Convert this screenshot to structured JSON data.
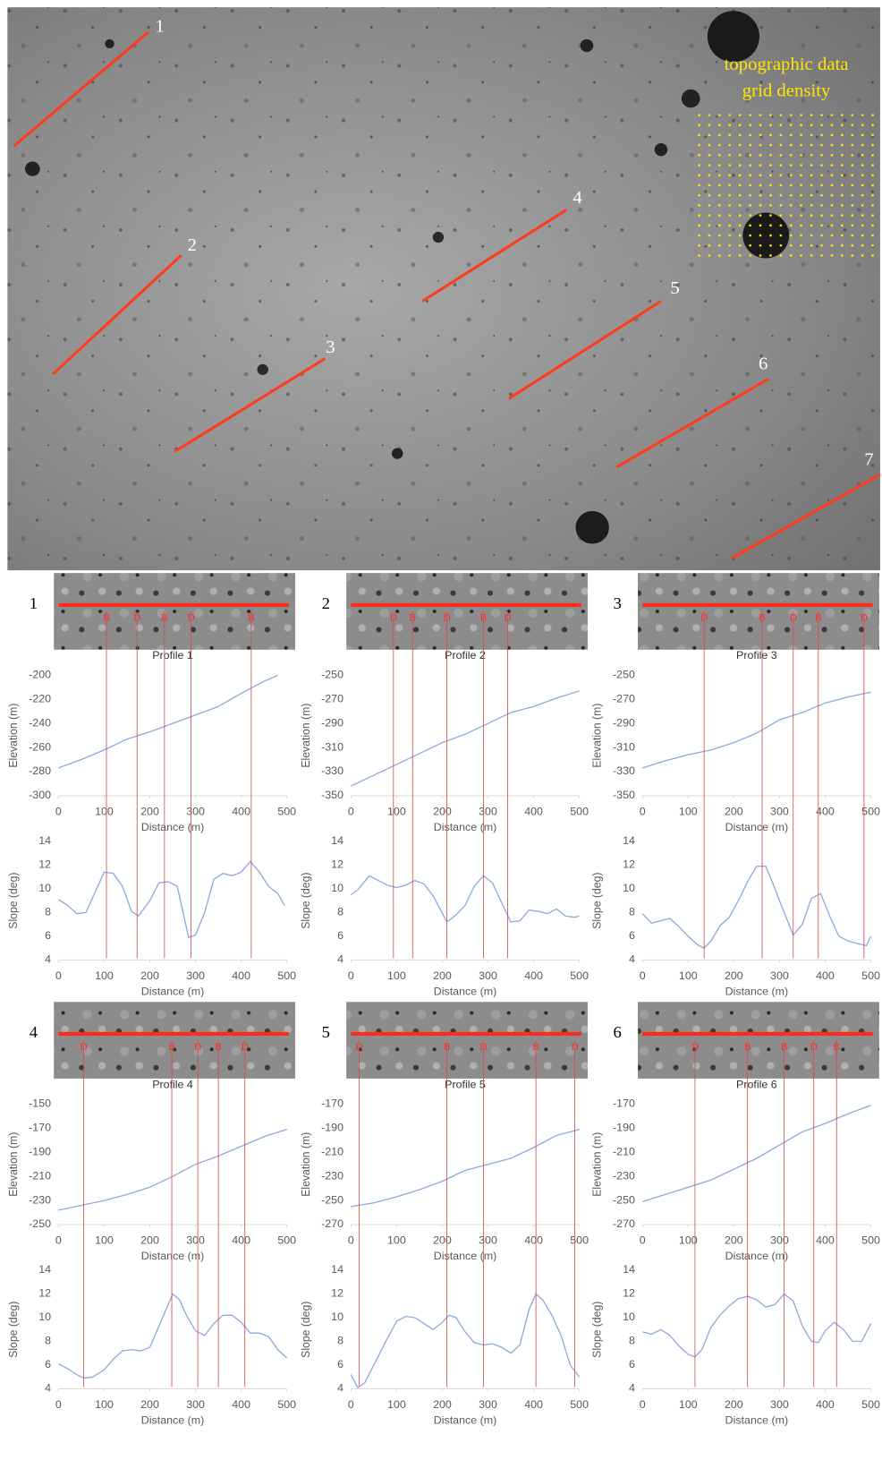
{
  "map": {
    "annotation": [
      "topographic data",
      "grid density"
    ],
    "profile_labels": [
      "1",
      "2",
      "3",
      "4",
      "5",
      "6",
      "7"
    ]
  },
  "profiles": [
    {
      "number": "1",
      "title": "Profile 1",
      "markers": [
        {
          "label": "B",
          "x": 105
        },
        {
          "label": "D",
          "x": 172
        },
        {
          "label": "B",
          "x": 232
        },
        {
          "label": "D",
          "x": 290
        },
        {
          "label": "B",
          "x": 422
        }
      ]
    },
    {
      "number": "2",
      "title": "Profile 2",
      "markers": [
        {
          "label": "D",
          "x": 93
        },
        {
          "label": "B",
          "x": 135
        },
        {
          "label": "D",
          "x": 210
        },
        {
          "label": "B",
          "x": 290
        },
        {
          "label": "D",
          "x": 343
        }
      ]
    },
    {
      "number": "3",
      "title": "Profile 3",
      "markers": [
        {
          "label": "D",
          "x": 135
        },
        {
          "label": "B",
          "x": 262
        },
        {
          "label": "D",
          "x": 330
        },
        {
          "label": "B",
          "x": 385
        },
        {
          "label": "D",
          "x": 485
        }
      ]
    },
    {
      "number": "4",
      "title": "Profile 4",
      "markers": [
        {
          "label": "D",
          "x": 55
        },
        {
          "label": "B",
          "x": 248
        },
        {
          "label": "D",
          "x": 305
        },
        {
          "label": "B",
          "x": 350
        },
        {
          "label": "D",
          "x": 408
        }
      ]
    },
    {
      "number": "5",
      "title": "Profile 5",
      "markers": [
        {
          "label": "D",
          "x": 18
        },
        {
          "label": "B",
          "x": 210
        },
        {
          "label": "D",
          "x": 290
        },
        {
          "label": "B",
          "x": 405
        },
        {
          "label": "D",
          "x": 490
        }
      ]
    },
    {
      "number": "6",
      "title": "Profile 6",
      "markers": [
        {
          "label": "D",
          "x": 115
        },
        {
          "label": "B",
          "x": 230
        },
        {
          "label": "B",
          "x": 310
        },
        {
          "label": "D",
          "x": 375
        },
        {
          "label": "B",
          "x": 425
        }
      ]
    }
  ],
  "chart_data": [
    {
      "type": "line",
      "xlabel": "Distance (m)",
      "ylabel": "Elevation (m)",
      "color": "#8faadc",
      "x": [
        0,
        50,
        100,
        150,
        200,
        250,
        300,
        350,
        400,
        450,
        480
      ],
      "values": [
        -277,
        -270,
        -262,
        -253,
        -247,
        -240,
        -233,
        -226,
        -215,
        -205,
        -200
      ],
      "xlim": [
        0,
        500
      ],
      "xticks": [
        0,
        100,
        200,
        300,
        400,
        500
      ],
      "ylim": [
        -300,
        -200
      ],
      "yticks": [
        -300,
        -280,
        -260,
        -240,
        -220,
        -200
      ]
    },
    {
      "type": "line",
      "xlabel": "Distance (m)",
      "ylabel": "Slope (deg)",
      "color": "#8faadc",
      "x": [
        0,
        20,
        40,
        60,
        100,
        120,
        140,
        160,
        175,
        200,
        220,
        240,
        260,
        285,
        300,
        320,
        340,
        360,
        380,
        400,
        420,
        440,
        460,
        480,
        495
      ],
      "values": [
        9.1,
        8.6,
        7.9,
        8.0,
        11.4,
        11.3,
        10.2,
        8.1,
        7.7,
        9.0,
        10.5,
        10.6,
        10.2,
        5.9,
        6.1,
        8.0,
        10.8,
        11.3,
        11.1,
        11.4,
        12.3,
        11.4,
        10.2,
        9.6,
        8.6
      ],
      "xlim": [
        0,
        500
      ],
      "xticks": [
        0,
        100,
        200,
        300,
        400,
        500
      ],
      "ylim": [
        4,
        14
      ],
      "yticks": [
        4,
        6,
        8,
        10,
        12,
        14
      ]
    },
    {
      "type": "line",
      "xlabel": "Distance (m)",
      "ylabel": "Elevation (m)",
      "color": "#8faadc",
      "x": [
        0,
        50,
        100,
        150,
        200,
        250,
        300,
        350,
        400,
        450,
        500
      ],
      "values": [
        -342,
        -333,
        -324,
        -315,
        -306,
        -299,
        -290,
        -281,
        -276,
        -269,
        -263
      ],
      "xlim": [
        0,
        500
      ],
      "xticks": [
        0,
        100,
        200,
        300,
        400,
        500
      ],
      "ylim": [
        -350,
        -250
      ],
      "yticks": [
        -350,
        -330,
        -310,
        -290,
        -270,
        -250
      ]
    },
    {
      "type": "line",
      "xlabel": "Distance (m)",
      "ylabel": "Slope (deg)",
      "color": "#8faadc",
      "x": [
        0,
        15,
        40,
        60,
        80,
        100,
        120,
        140,
        160,
        180,
        210,
        230,
        250,
        270,
        290,
        310,
        330,
        350,
        370,
        390,
        410,
        430,
        450,
        470,
        490,
        500
      ],
      "values": [
        9.5,
        9.9,
        11.1,
        10.7,
        10.3,
        10.1,
        10.3,
        10.7,
        10.4,
        9.4,
        7.2,
        7.8,
        8.6,
        10.2,
        11.1,
        10.5,
        8.8,
        7.2,
        7.3,
        8.2,
        8.1,
        7.9,
        8.3,
        7.7,
        7.6,
        7.7
      ],
      "xlim": [
        0,
        500
      ],
      "xticks": [
        0,
        100,
        200,
        300,
        400,
        500
      ],
      "ylim": [
        4,
        14
      ],
      "yticks": [
        4,
        6,
        8,
        10,
        12,
        14
      ]
    },
    {
      "type": "line",
      "xlabel": "Distance (m)",
      "ylabel": "Elevation (m)",
      "color": "#8faadc",
      "x": [
        0,
        50,
        100,
        150,
        200,
        250,
        300,
        350,
        400,
        450,
        500
      ],
      "values": [
        -327,
        -321,
        -316,
        -312,
        -306,
        -298,
        -287,
        -281,
        -273,
        -268,
        -264
      ],
      "xlim": [
        0,
        500
      ],
      "xticks": [
        0,
        100,
        200,
        300,
        400,
        500
      ],
      "ylim": [
        -350,
        -250
      ],
      "yticks": [
        -350,
        -330,
        -310,
        -290,
        -270,
        -250
      ]
    },
    {
      "type": "line",
      "xlabel": "Distance (m)",
      "ylabel": "Slope (deg)",
      "color": "#8faadc",
      "x": [
        0,
        20,
        40,
        60,
        80,
        100,
        120,
        135,
        150,
        170,
        190,
        210,
        230,
        250,
        270,
        285,
        300,
        330,
        350,
        370,
        390,
        410,
        430,
        450,
        470,
        490,
        500
      ],
      "values": [
        7.9,
        7.1,
        7.3,
        7.5,
        6.8,
        6.0,
        5.3,
        5.0,
        5.6,
        6.9,
        7.6,
        9.0,
        10.6,
        11.9,
        11.9,
        10.5,
        9.0,
        6.1,
        7.0,
        9.2,
        9.6,
        7.7,
        6.0,
        5.6,
        5.4,
        5.2,
        6.0
      ],
      "xlim": [
        0,
        500
      ],
      "xticks": [
        0,
        100,
        200,
        300,
        400,
        500
      ],
      "ylim": [
        4,
        14
      ],
      "yticks": [
        4,
        6,
        8,
        10,
        12,
        14
      ]
    },
    {
      "type": "line",
      "xlabel": "Distance (m)",
      "ylabel": "Elevation (m)",
      "color": "#8faadc",
      "x": [
        0,
        50,
        100,
        150,
        200,
        250,
        300,
        350,
        400,
        450,
        500
      ],
      "values": [
        -238,
        -234,
        -230,
        -225,
        -219,
        -210,
        -200,
        -193,
        -185,
        -177,
        -171
      ],
      "xlim": [
        0,
        500
      ],
      "xticks": [
        0,
        100,
        200,
        300,
        400,
        500
      ],
      "ylim": [
        -250,
        -150
      ],
      "yticks": [
        -250,
        -230,
        -210,
        -190,
        -170,
        -150
      ]
    },
    {
      "type": "line",
      "xlabel": "Distance (m)",
      "ylabel": "Slope (deg)",
      "color": "#8faadc",
      "x": [
        0,
        20,
        40,
        55,
        75,
        100,
        120,
        140,
        160,
        180,
        200,
        230,
        250,
        265,
        280,
        300,
        320,
        340,
        360,
        380,
        400,
        420,
        440,
        460,
        480,
        500
      ],
      "values": [
        6.1,
        5.7,
        5.2,
        4.9,
        5.0,
        5.6,
        6.5,
        7.2,
        7.3,
        7.2,
        7.5,
        10.2,
        12.0,
        11.5,
        10.2,
        8.9,
        8.5,
        9.5,
        10.2,
        10.2,
        9.6,
        8.7,
        8.7,
        8.4,
        7.3,
        6.6
      ],
      "xlim": [
        0,
        500
      ],
      "xticks": [
        0,
        100,
        200,
        300,
        400,
        500
      ],
      "ylim": [
        4,
        14
      ],
      "yticks": [
        4,
        6,
        8,
        10,
        12,
        14
      ]
    },
    {
      "type": "line",
      "xlabel": "Distance (m)",
      "ylabel": "Elevation (m)",
      "color": "#8faadc",
      "x": [
        0,
        50,
        100,
        150,
        200,
        250,
        300,
        350,
        400,
        450,
        500
      ],
      "values": [
        -255,
        -252,
        -247,
        -241,
        -234,
        -225,
        -220,
        -215,
        -206,
        -196,
        -191
      ],
      "xlim": [
        0,
        500
      ],
      "xticks": [
        0,
        100,
        200,
        300,
        400,
        500
      ],
      "ylim": [
        -270,
        -170
      ],
      "yticks": [
        -270,
        -250,
        -230,
        -210,
        -190,
        -170
      ]
    },
    {
      "type": "line",
      "xlabel": "Distance (m)",
      "ylabel": "Slope (deg)",
      "color": "#8faadc",
      "x": [
        0,
        15,
        30,
        50,
        75,
        100,
        120,
        140,
        160,
        180,
        200,
        215,
        230,
        250,
        270,
        290,
        310,
        330,
        350,
        370,
        390,
        405,
        420,
        440,
        460,
        480,
        500
      ],
      "values": [
        5.2,
        4.1,
        4.5,
        6.0,
        7.9,
        9.7,
        10.1,
        10.0,
        9.5,
        9.0,
        9.6,
        10.2,
        10.0,
        8.8,
        7.9,
        7.7,
        7.8,
        7.5,
        7.0,
        7.7,
        10.7,
        12.0,
        11.5,
        10.2,
        8.5,
        6.0,
        5.0
      ],
      "xlim": [
        0,
        500
      ],
      "xticks": [
        0,
        100,
        200,
        300,
        400,
        500
      ],
      "ylim": [
        4,
        14
      ],
      "yticks": [
        4,
        6,
        8,
        10,
        12,
        14
      ]
    },
    {
      "type": "line",
      "xlabel": "Distance (m)",
      "ylabel": "Elevation (m)",
      "color": "#8faadc",
      "x": [
        0,
        50,
        100,
        150,
        200,
        250,
        300,
        350,
        400,
        450,
        500
      ],
      "values": [
        -251,
        -245,
        -239,
        -233,
        -224,
        -215,
        -204,
        -193,
        -186,
        -178,
        -171
      ],
      "xlim": [
        0,
        500
      ],
      "xticks": [
        0,
        100,
        200,
        300,
        400,
        500
      ],
      "ylim": [
        -270,
        -170
      ],
      "yticks": [
        -270,
        -250,
        -230,
        -210,
        -190,
        -170
      ]
    },
    {
      "type": "line",
      "xlabel": "Distance (m)",
      "ylabel": "Slope (deg)",
      "color": "#8faadc",
      "x": [
        0,
        20,
        40,
        60,
        80,
        100,
        115,
        130,
        150,
        170,
        190,
        210,
        230,
        250,
        270,
        290,
        310,
        330,
        350,
        370,
        385,
        400,
        420,
        440,
        460,
        480,
        500
      ],
      "values": [
        8.8,
        8.6,
        9.0,
        8.5,
        7.6,
        6.9,
        6.7,
        7.3,
        9.2,
        10.2,
        11.0,
        11.6,
        11.8,
        11.5,
        10.9,
        11.1,
        12.0,
        11.4,
        9.3,
        8.0,
        7.9,
        8.9,
        9.6,
        9.0,
        8.0,
        8.0,
        9.5
      ],
      "xlim": [
        0,
        500
      ],
      "xticks": [
        0,
        100,
        200,
        300,
        400,
        500
      ],
      "ylim": [
        4,
        14
      ],
      "yticks": [
        4,
        6,
        8,
        10,
        12,
        14
      ]
    }
  ]
}
